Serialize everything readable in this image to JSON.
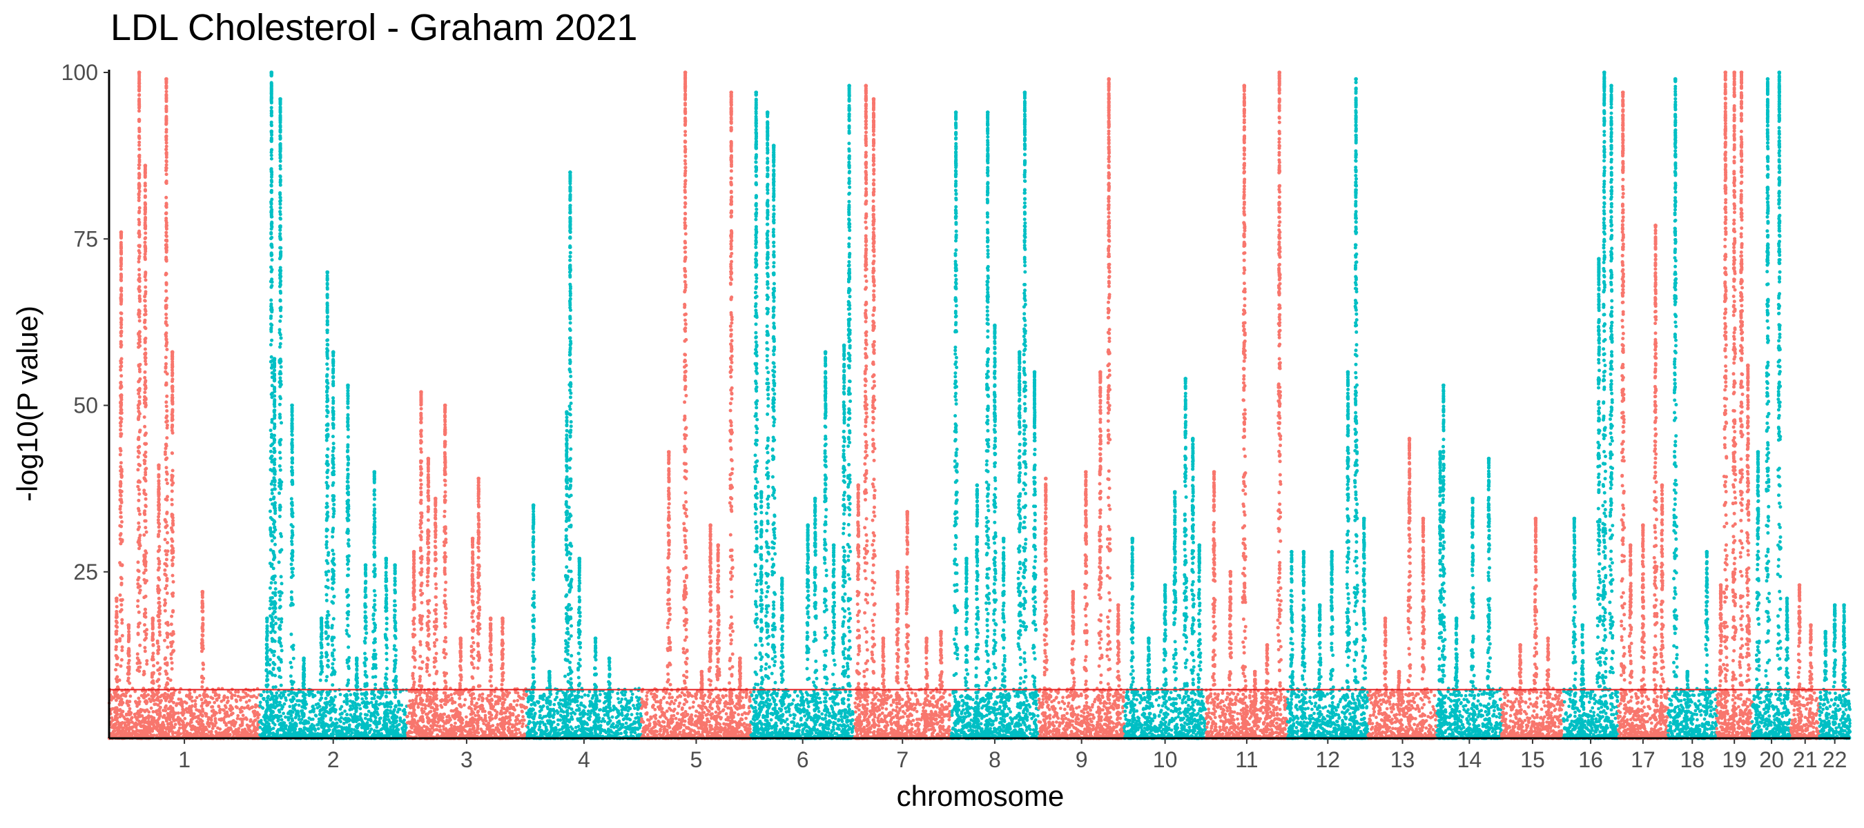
{
  "chart_data": {
    "type": "scatter",
    "subtype": "manhattan",
    "title": "LDL Cholesterol - Graham 2021",
    "xlabel": "chromosome",
    "ylabel": "-log10(P value)",
    "ylim": [
      0,
      100
    ],
    "yticks": [
      25,
      50,
      75,
      100
    ],
    "significance_line": 7.3,
    "significance_color": "#e41a1c",
    "grid": false,
    "legend": "none",
    "colors": {
      "odd": "#F8766D",
      "even": "#00BFC4"
    },
    "chromosomes": [
      {
        "label": "1",
        "size": 249,
        "peaks": [
          [
            0.05,
            21
          ],
          [
            0.08,
            76
          ],
          [
            0.13,
            17
          ],
          [
            0.2,
            100
          ],
          [
            0.24,
            86
          ],
          [
            0.29,
            18
          ],
          [
            0.33,
            41
          ],
          [
            0.38,
            99
          ],
          [
            0.42,
            58
          ],
          [
            0.62,
            22
          ]
        ]
      },
      {
        "label": "2",
        "size": 243,
        "peaks": [
          [
            0.05,
            18
          ],
          [
            0.08,
            100
          ],
          [
            0.1,
            57
          ],
          [
            0.14,
            96
          ],
          [
            0.22,
            50
          ],
          [
            0.3,
            12
          ],
          [
            0.42,
            18
          ],
          [
            0.46,
            70
          ],
          [
            0.5,
            58
          ],
          [
            0.6,
            53
          ],
          [
            0.66,
            12
          ],
          [
            0.72,
            26
          ],
          [
            0.78,
            40
          ],
          [
            0.86,
            27
          ],
          [
            0.92,
            26
          ]
        ]
      },
      {
        "label": "3",
        "size": 198,
        "peaks": [
          [
            0.06,
            28
          ],
          [
            0.12,
            52
          ],
          [
            0.18,
            42
          ],
          [
            0.24,
            36
          ],
          [
            0.32,
            50
          ],
          [
            0.45,
            15
          ],
          [
            0.55,
            30
          ],
          [
            0.6,
            39
          ],
          [
            0.7,
            18
          ],
          [
            0.8,
            18
          ]
        ]
      },
      {
        "label": "4",
        "size": 190,
        "peaks": [
          [
            0.06,
            35
          ],
          [
            0.2,
            10
          ],
          [
            0.35,
            49
          ],
          [
            0.38,
            85
          ],
          [
            0.46,
            27
          ],
          [
            0.6,
            15
          ],
          [
            0.72,
            12
          ]
        ]
      },
      {
        "label": "5",
        "size": 181,
        "peaks": [
          [
            0.25,
            43
          ],
          [
            0.4,
            100
          ],
          [
            0.55,
            10
          ],
          [
            0.63,
            32
          ],
          [
            0.7,
            29
          ],
          [
            0.82,
            97
          ],
          [
            0.9,
            12
          ]
        ]
      },
      {
        "label": "6",
        "size": 171,
        "peaks": [
          [
            0.05,
            97
          ],
          [
            0.1,
            37
          ],
          [
            0.16,
            94
          ],
          [
            0.22,
            89
          ],
          [
            0.3,
            24
          ],
          [
            0.55,
            32
          ],
          [
            0.62,
            36
          ],
          [
            0.72,
            58
          ],
          [
            0.8,
            29
          ],
          [
            0.9,
            59
          ],
          [
            0.95,
            98
          ]
        ]
      },
      {
        "label": "7",
        "size": 159,
        "peaks": [
          [
            0.04,
            38
          ],
          [
            0.12,
            98
          ],
          [
            0.2,
            96
          ],
          [
            0.3,
            15
          ],
          [
            0.45,
            25
          ],
          [
            0.55,
            34
          ],
          [
            0.75,
            15
          ],
          [
            0.9,
            16
          ]
        ]
      },
      {
        "label": "8",
        "size": 146,
        "peaks": [
          [
            0.06,
            94
          ],
          [
            0.18,
            27
          ],
          [
            0.3,
            38
          ],
          [
            0.42,
            94
          ],
          [
            0.5,
            62
          ],
          [
            0.6,
            30
          ],
          [
            0.78,
            58
          ],
          [
            0.84,
            97
          ],
          [
            0.95,
            55
          ]
        ]
      },
      {
        "label": "9",
        "size": 141,
        "peaks": [
          [
            0.08,
            39
          ],
          [
            0.4,
            22
          ],
          [
            0.55,
            40
          ],
          [
            0.72,
            55
          ],
          [
            0.82,
            99
          ],
          [
            0.93,
            20
          ]
        ]
      },
      {
        "label": "10",
        "size": 135,
        "peaks": [
          [
            0.1,
            30
          ],
          [
            0.3,
            15
          ],
          [
            0.5,
            23
          ],
          [
            0.62,
            37
          ],
          [
            0.75,
            54
          ],
          [
            0.84,
            45
          ],
          [
            0.92,
            29
          ]
        ]
      },
      {
        "label": "11",
        "size": 135,
        "peaks": [
          [
            0.1,
            40
          ],
          [
            0.3,
            25
          ],
          [
            0.47,
            98
          ],
          [
            0.6,
            10
          ],
          [
            0.75,
            14
          ],
          [
            0.9,
            100
          ]
        ]
      },
      {
        "label": "12",
        "size": 133,
        "peaks": [
          [
            0.05,
            28
          ],
          [
            0.2,
            28
          ],
          [
            0.4,
            20
          ],
          [
            0.55,
            28
          ],
          [
            0.75,
            55
          ],
          [
            0.85,
            99
          ],
          [
            0.95,
            33
          ]
        ]
      },
      {
        "label": "13",
        "size": 114,
        "peaks": [
          [
            0.25,
            18
          ],
          [
            0.45,
            10
          ],
          [
            0.6,
            45
          ],
          [
            0.8,
            33
          ]
        ]
      },
      {
        "label": "14",
        "size": 107,
        "peaks": [
          [
            0.05,
            43
          ],
          [
            0.1,
            53
          ],
          [
            0.3,
            18
          ],
          [
            0.55,
            36
          ],
          [
            0.8,
            42
          ]
        ]
      },
      {
        "label": "15",
        "size": 102,
        "peaks": [
          [
            0.3,
            14
          ],
          [
            0.55,
            33
          ],
          [
            0.75,
            15
          ]
        ]
      },
      {
        "label": "16",
        "size": 90,
        "peaks": [
          [
            0.2,
            33
          ],
          [
            0.35,
            17
          ],
          [
            0.65,
            72
          ],
          [
            0.75,
            100
          ],
          [
            0.88,
            98
          ]
        ]
      },
      {
        "label": "17",
        "size": 83,
        "peaks": [
          [
            0.1,
            97
          ],
          [
            0.25,
            29
          ],
          [
            0.5,
            32
          ],
          [
            0.75,
            77
          ],
          [
            0.88,
            38
          ]
        ]
      },
      {
        "label": "18",
        "size": 80,
        "peaks": [
          [
            0.15,
            99
          ],
          [
            0.4,
            10
          ],
          [
            0.8,
            28
          ]
        ]
      },
      {
        "label": "19",
        "size": 59,
        "peaks": [
          [
            0.12,
            23
          ],
          [
            0.25,
            100
          ],
          [
            0.5,
            100
          ],
          [
            0.7,
            100
          ],
          [
            0.88,
            56
          ]
        ]
      },
      {
        "label": "20",
        "size": 64,
        "peaks": [
          [
            0.15,
            43
          ],
          [
            0.4,
            99
          ],
          [
            0.7,
            100
          ],
          [
            0.9,
            21
          ]
        ]
      },
      {
        "label": "21",
        "size": 47,
        "peaks": [
          [
            0.3,
            23
          ],
          [
            0.7,
            17
          ]
        ]
      },
      {
        "label": "22",
        "size": 51,
        "peaks": [
          [
            0.2,
            16
          ],
          [
            0.5,
            20
          ],
          [
            0.8,
            20
          ]
        ]
      }
    ]
  }
}
